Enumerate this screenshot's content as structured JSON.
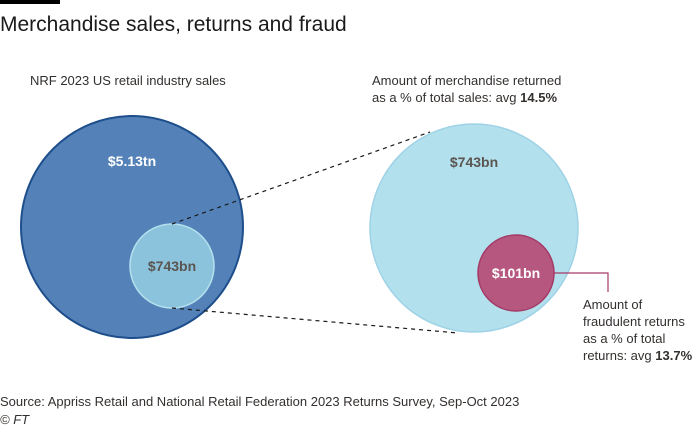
{
  "title": "Merchandise sales, returns and fraud",
  "labels": {
    "industry": "NRF 2023 US retail industry sales",
    "returned_line1": "Amount of merchandise returned",
    "returned_line2_prefix": "as a % of total sales: avg ",
    "returned_line2_bold": "14.5%",
    "fraud_line1": "Amount of",
    "fraud_line2": "fraudulent returns",
    "fraud_line3": "as a % of total",
    "fraud_line4_prefix": "returns: avg ",
    "fraud_line4_bold": "13.7%"
  },
  "source": "Source: Appriss Retail and National Retail Federation 2023 Returns Survey, Sep-Oct 2023",
  "copyright": "© FT",
  "colors": {
    "sales": "#5482b8",
    "sales_stroke": "#1e4f8c",
    "returns": "#b3e0ed",
    "returns_stroke": "#9ed2e6",
    "returns_inner": "#8cc3dc",
    "fraud": "#b5577e",
    "fraud_stroke": "#a43a67",
    "fraud_leader": "#a43a67",
    "connector": "#1a1a1a"
  },
  "chart_data": {
    "type": "bubble",
    "title": "Merchandise sales, returns and fraud",
    "units": "US dollars",
    "circles": [
      {
        "name": "NRF 2023 US retail industry sales",
        "value_label": "$5.13tn",
        "value": 5130
      },
      {
        "name": "Amount of merchandise returned",
        "value_label": "$743bn",
        "value": 743,
        "share_of_parent_pct": 14.5
      },
      {
        "name": "Amount of fraudulent returns",
        "value_label": "$101bn",
        "value": 101,
        "share_of_parent_pct": 13.7
      }
    ]
  }
}
